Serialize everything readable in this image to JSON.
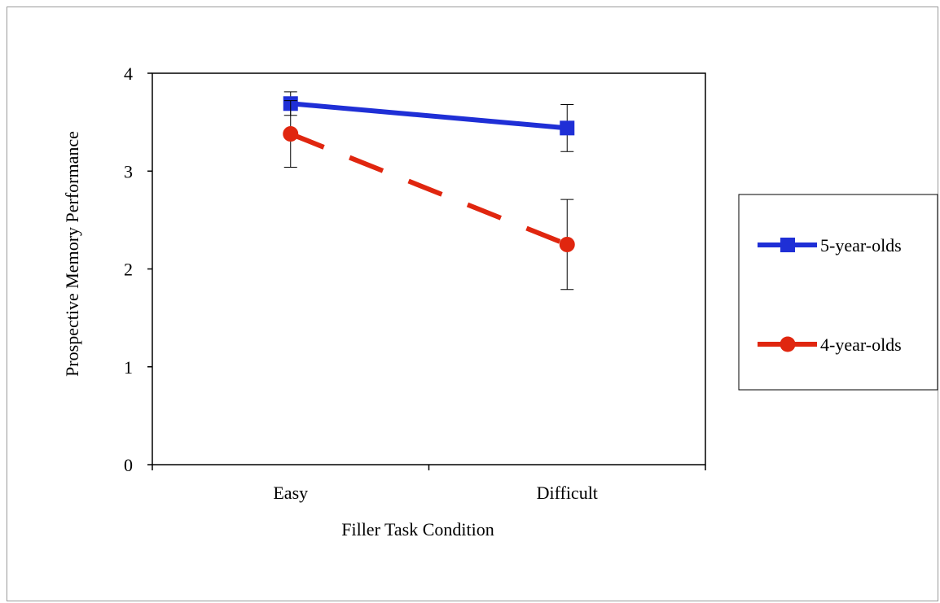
{
  "chart_data": {
    "type": "line",
    "title": "",
    "xlabel": "Filler Task Condition",
    "ylabel": "Prospective Memory Performance",
    "categories": [
      "Easy",
      "Difficult"
    ],
    "ylim": [
      0,
      4
    ],
    "yticks": [
      "0",
      "1",
      "2",
      "3",
      "4"
    ],
    "grid": false,
    "legend_position": "right",
    "series": [
      {
        "name": "5-year-olds",
        "values": [
          3.69,
          3.44
        ],
        "error_low": [
          3.57,
          3.2
        ],
        "error_high": [
          3.81,
          3.68
        ],
        "color": "#1f2fd6",
        "marker": "square",
        "line_style": "solid"
      },
      {
        "name": "4-year-olds",
        "values": [
          3.38,
          2.25
        ],
        "error_low": [
          3.04,
          1.79
        ],
        "error_high": [
          3.72,
          2.71
        ],
        "color": "#e0260f",
        "marker": "circle",
        "line_style": "dashed"
      }
    ]
  }
}
